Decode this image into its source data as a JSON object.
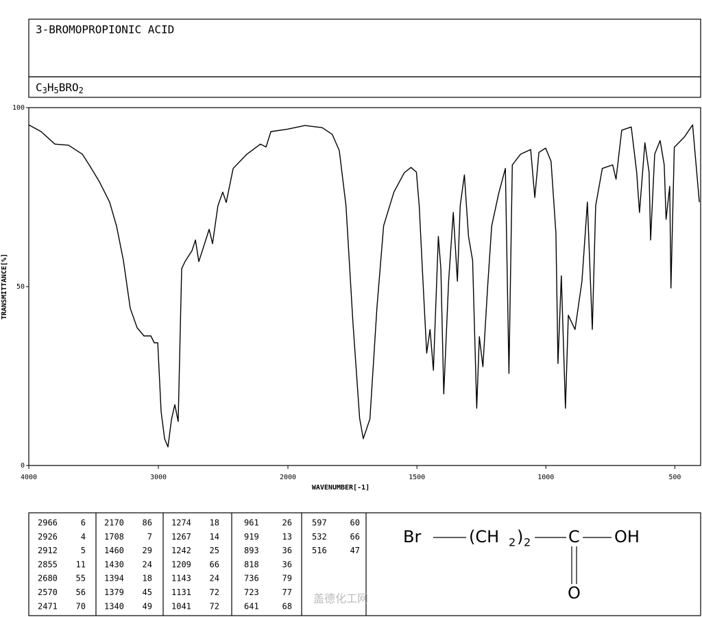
{
  "chart_data": {
    "type": "line",
    "title": "3-BROMOPROPIONIC ACID",
    "formula": [
      "C",
      "3",
      "H",
      "5",
      "BRO",
      "2"
    ],
    "x_label": "WAVENUMBER[-1]",
    "y_label": "TRANSMITTANCE[%]",
    "xlim": [
      4000,
      400
    ],
    "x_scale_break": 2000,
    "ylim": [
      0,
      100
    ],
    "xticks": [
      4000,
      3000,
      2000,
      1500,
      1000,
      500
    ],
    "yticks": [
      0,
      50,
      100
    ],
    "color": "#000000",
    "x": [
      4000,
      3905,
      3799,
      3693,
      3587,
      3534,
      3455,
      3376,
      3323,
      3270,
      3217,
      3164,
      3111,
      3058,
      3032,
      3005,
      2979,
      2952,
      2926,
      2899,
      2873,
      2847,
      2820,
      2794,
      2741,
      2714,
      2688,
      2661,
      2608,
      2582,
      2540,
      2503,
      2476,
      2423,
      2317,
      2212,
      2169,
      2132,
      2000,
      1934,
      1867,
      1828,
      1801,
      1775,
      1748,
      1722,
      1708,
      1682,
      1655,
      1629,
      1589,
      1549,
      1523,
      1502,
      1491,
      1475,
      1462,
      1449,
      1436,
      1417,
      1407,
      1396,
      1377,
      1359,
      1343,
      1332,
      1316,
      1300,
      1284,
      1268,
      1258,
      1244,
      1226,
      1210,
      1183,
      1157,
      1143,
      1130,
      1098,
      1059,
      1043,
      1027,
      1001,
      980,
      961,
      953,
      940,
      924,
      913,
      887,
      860,
      839,
      820,
      807,
      781,
      741,
      728,
      706,
      669,
      648,
      637,
      616,
      600,
      594,
      578,
      557,
      541,
      534,
      520,
      515,
      502,
      463,
      431,
      405
    ],
    "values": [
      95.2,
      93.3,
      89.8,
      89.5,
      87,
      84,
      79.3,
      73.6,
      66.9,
      57.3,
      43.9,
      38.5,
      36.2,
      36.2,
      34.3,
      34.3,
      15.1,
      7.5,
      5.2,
      12.8,
      17,
      12.3,
      55,
      57,
      60,
      63,
      57,
      60,
      66,
      62,
      72.6,
      76.4,
      73.5,
      83,
      87,
      89.8,
      89,
      93.3,
      94,
      95,
      94.4,
      92.5,
      88,
      72.6,
      40,
      13.2,
      7.5,
      13,
      44,
      67,
      76.4,
      81.8,
      83.3,
      82,
      72.6,
      49.6,
      31.4,
      38,
      26.6,
      64,
      55,
      20,
      51.5,
      70.7,
      51.5,
      72.6,
      81.2,
      64,
      57.3,
      16,
      36,
      27.6,
      49.6,
      66.9,
      76,
      83,
      25.7,
      84,
      87,
      88.3,
      74.9,
      87.5,
      88.7,
      85,
      65,
      28.5,
      53,
      16,
      42,
      38,
      51.5,
      73.6,
      38,
      72.6,
      83,
      84,
      80,
      93.7,
      94.6,
      82,
      70.7,
      90.2,
      82,
      63,
      87,
      90.8,
      84,
      68.8,
      78,
      49.6,
      88.9,
      91.8,
      95.2,
      73.6
    ],
    "peak_table": [
      [
        [
          2966,
          6
        ],
        [
          2926,
          4
        ],
        [
          2912,
          5
        ],
        [
          2855,
          11
        ],
        [
          2680,
          55
        ],
        [
          2570,
          56
        ],
        [
          2471,
          70
        ]
      ],
      [
        [
          2170,
          86
        ],
        [
          1708,
          7
        ],
        [
          1460,
          29
        ],
        [
          1430,
          24
        ],
        [
          1394,
          18
        ],
        [
          1379,
          45
        ],
        [
          1340,
          49
        ]
      ],
      [
        [
          1274,
          18
        ],
        [
          1267,
          14
        ],
        [
          1242,
          25
        ],
        [
          1209,
          66
        ],
        [
          1143,
          24
        ],
        [
          1131,
          72
        ],
        [
          1041,
          72
        ]
      ],
      [
        [
          961,
          26
        ],
        [
          919,
          13
        ],
        [
          893,
          36
        ],
        [
          818,
          36
        ],
        [
          736,
          79
        ],
        [
          723,
          77
        ],
        [
          641,
          68
        ]
      ],
      [
        [
          597,
          60
        ],
        [
          532,
          66
        ],
        [
          516,
          47
        ]
      ]
    ],
    "structure": {
      "bromine": "Br",
      "open": "(CH",
      "h_sub": "2",
      "close": ")",
      "count": "2",
      "carbon": "C",
      "hydroxyl": "OH",
      "oxygen": "O"
    },
    "watermark": "盖德化工网"
  }
}
